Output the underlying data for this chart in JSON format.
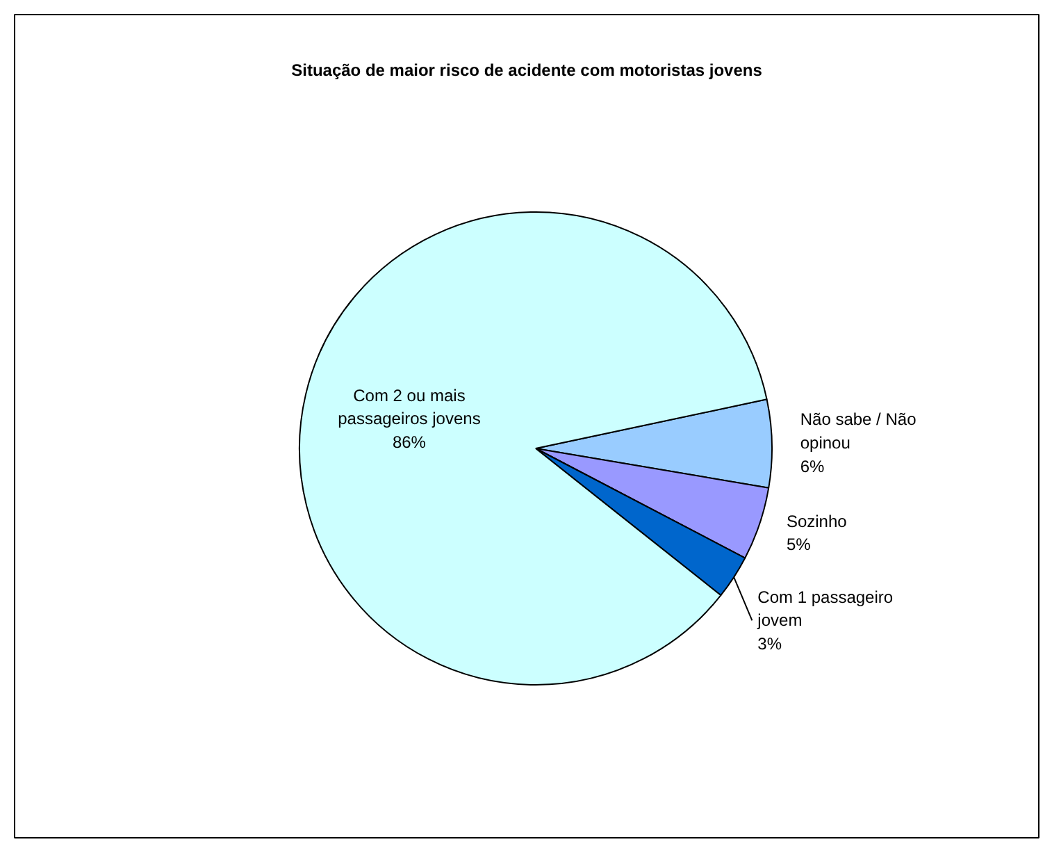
{
  "chart_data": {
    "type": "pie",
    "title": "Situação de maior risco de acidente com motoristas jovens",
    "categories": [
      "Não sabe / Não opinou",
      "Sozinho",
      "Com 1 passageiro jovem",
      "Com 2 ou mais passageiros jovens"
    ],
    "values": [
      6,
      5,
      3,
      86
    ],
    "value_labels": [
      "6%",
      "5%",
      "3%",
      "86%"
    ],
    "colors": [
      "#99ccff",
      "#9999ff",
      "#0066cc",
      "#ccffff"
    ]
  }
}
